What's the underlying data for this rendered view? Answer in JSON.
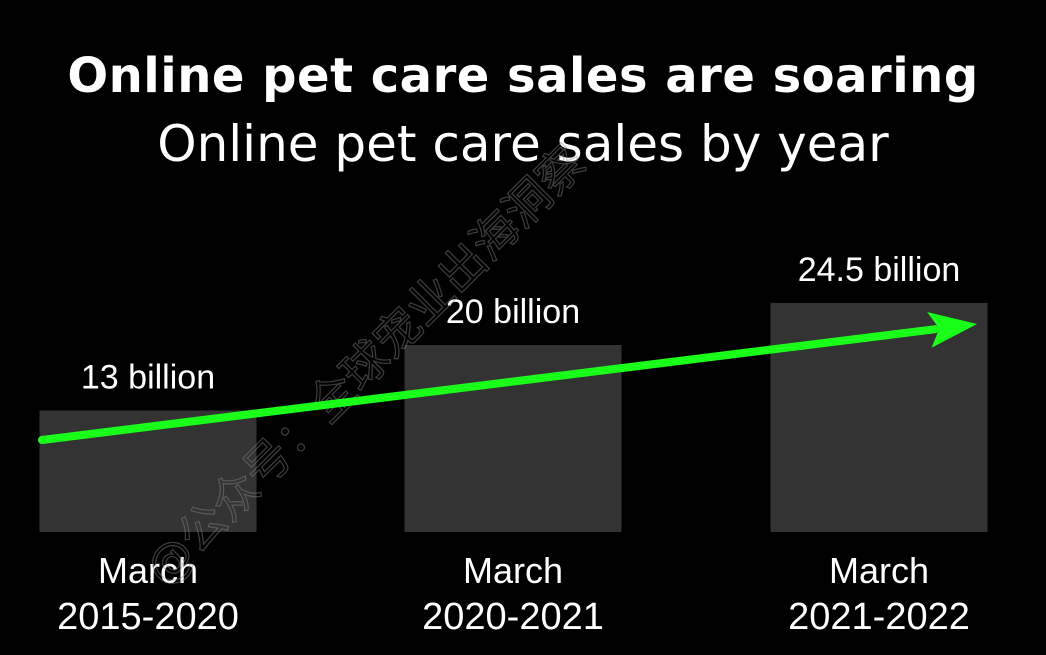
{
  "title": "Online pet care sales are soaring",
  "subtitle": "Online pet care sales by year",
  "watermark": "@公众号：全球宠业出海洞察",
  "colors": {
    "background": "#000000",
    "bar": "#333333",
    "trend_arrow": "#1aff1a",
    "text": "#ffffff"
  },
  "chart_data": {
    "type": "bar",
    "title": "Online pet care sales are soaring",
    "subtitle": "Online pet care sales by year",
    "categories": [
      [
        "March",
        "2015-2020"
      ],
      [
        "March",
        "2020-2021"
      ],
      [
        "March",
        "2021-2022"
      ]
    ],
    "values": [
      13,
      20,
      24.5
    ],
    "unit": "billion",
    "data_labels": [
      "13 billion",
      "20 billion",
      "24.5 billion"
    ],
    "ylim": [
      0,
      30
    ],
    "xlabel": "",
    "ylabel": "",
    "grid": false,
    "legend": "none",
    "annotations": [
      {
        "type": "trend-arrow",
        "direction": "up-right"
      }
    ]
  }
}
